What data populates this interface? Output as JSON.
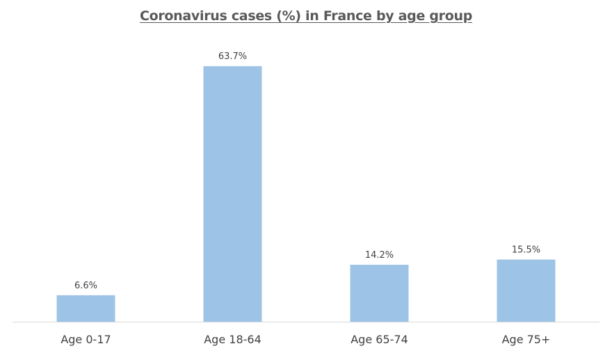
{
  "chart_data": {
    "type": "bar",
    "title": "Coronavirus cases (%) in France by age group",
    "categories": [
      "Age 0-17",
      "Age 18-64",
      "Age 65-74",
      "Age 75+"
    ],
    "values": [
      6.6,
      63.7,
      14.2,
      15.5
    ],
    "data_labels": [
      "6.6%",
      "63.7%",
      "14.2%",
      "15.5%"
    ],
    "unit": "%",
    "xlabel": "",
    "ylabel": "",
    "ylim": [
      0,
      64
    ],
    "grid": false,
    "legend": "none",
    "bar_color": "#9DC3E6",
    "axis_color": "#D9D9D9"
  }
}
